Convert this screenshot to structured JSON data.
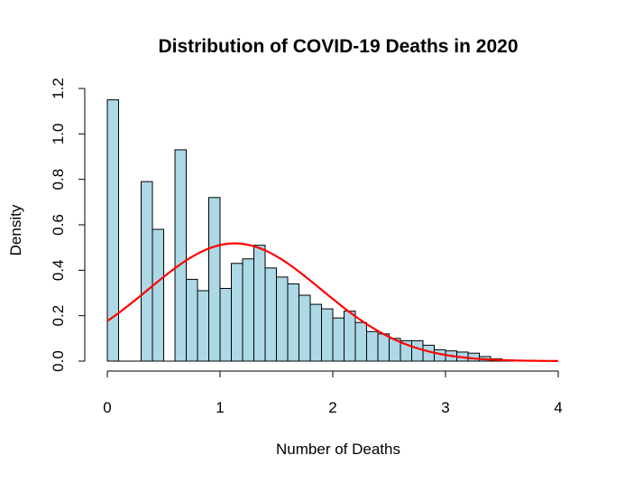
{
  "chart_data": {
    "type": "bar",
    "title": "Distribution of COVID-19 Deaths in 2020",
    "xlabel": "Number of Deaths",
    "ylabel": "Density",
    "xlim": [
      0,
      4
    ],
    "ylim": [
      0,
      1.2
    ],
    "x_ticks": [
      "0",
      "1",
      "2",
      "3",
      "4"
    ],
    "y_ticks": [
      "0.0",
      "0.2",
      "0.4",
      "0.6",
      "0.8",
      "1.0",
      "1.2"
    ],
    "bin_width": 0.1,
    "bins": [
      {
        "x0": 0.0,
        "x1": 0.1,
        "density": 1.15
      },
      {
        "x0": 0.1,
        "x1": 0.2,
        "density": 0.0
      },
      {
        "x0": 0.2,
        "x1": 0.3,
        "density": 0.0
      },
      {
        "x0": 0.3,
        "x1": 0.4,
        "density": 0.79
      },
      {
        "x0": 0.4,
        "x1": 0.5,
        "density": 0.58
      },
      {
        "x0": 0.5,
        "x1": 0.6,
        "density": 0.0
      },
      {
        "x0": 0.6,
        "x1": 0.7,
        "density": 0.93
      },
      {
        "x0": 0.7,
        "x1": 0.8,
        "density": 0.36
      },
      {
        "x0": 0.8,
        "x1": 0.9,
        "density": 0.31
      },
      {
        "x0": 0.9,
        "x1": 1.0,
        "density": 0.72
      },
      {
        "x0": 1.0,
        "x1": 1.1,
        "density": 0.32
      },
      {
        "x0": 1.1,
        "x1": 1.2,
        "density": 0.43
      },
      {
        "x0": 1.2,
        "x1": 1.3,
        "density": 0.45
      },
      {
        "x0": 1.3,
        "x1": 1.4,
        "density": 0.51
      },
      {
        "x0": 1.4,
        "x1": 1.5,
        "density": 0.41
      },
      {
        "x0": 1.5,
        "x1": 1.6,
        "density": 0.37
      },
      {
        "x0": 1.6,
        "x1": 1.7,
        "density": 0.34
      },
      {
        "x0": 1.7,
        "x1": 1.8,
        "density": 0.29
      },
      {
        "x0": 1.8,
        "x1": 1.9,
        "density": 0.25
      },
      {
        "x0": 1.9,
        "x1": 2.0,
        "density": 0.23
      },
      {
        "x0": 2.0,
        "x1": 2.1,
        "density": 0.19
      },
      {
        "x0": 2.1,
        "x1": 2.2,
        "density": 0.22
      },
      {
        "x0": 2.2,
        "x1": 2.3,
        "density": 0.17
      },
      {
        "x0": 2.3,
        "x1": 2.4,
        "density": 0.13
      },
      {
        "x0": 2.4,
        "x1": 2.5,
        "density": 0.12
      },
      {
        "x0": 2.5,
        "x1": 2.6,
        "density": 0.1
      },
      {
        "x0": 2.6,
        "x1": 2.7,
        "density": 0.09
      },
      {
        "x0": 2.7,
        "x1": 2.8,
        "density": 0.09
      },
      {
        "x0": 2.8,
        "x1": 2.9,
        "density": 0.07
      },
      {
        "x0": 2.9,
        "x1": 3.0,
        "density": 0.05
      },
      {
        "x0": 3.0,
        "x1": 3.1,
        "density": 0.045
      },
      {
        "x0": 3.1,
        "x1": 3.2,
        "density": 0.04
      },
      {
        "x0": 3.2,
        "x1": 3.3,
        "density": 0.035
      },
      {
        "x0": 3.3,
        "x1": 3.4,
        "density": 0.02
      },
      {
        "x0": 3.4,
        "x1": 3.5,
        "density": 0.01
      },
      {
        "x0": 3.5,
        "x1": 3.6,
        "density": 0.005
      }
    ],
    "density_curve": {
      "color": "#ff0000",
      "distribution": "normal",
      "mean": 1.13,
      "sd": 0.77,
      "x_range": [
        0,
        4
      ]
    },
    "bar_fill": "#add8e6",
    "bar_stroke": "#000000",
    "grid": false
  }
}
